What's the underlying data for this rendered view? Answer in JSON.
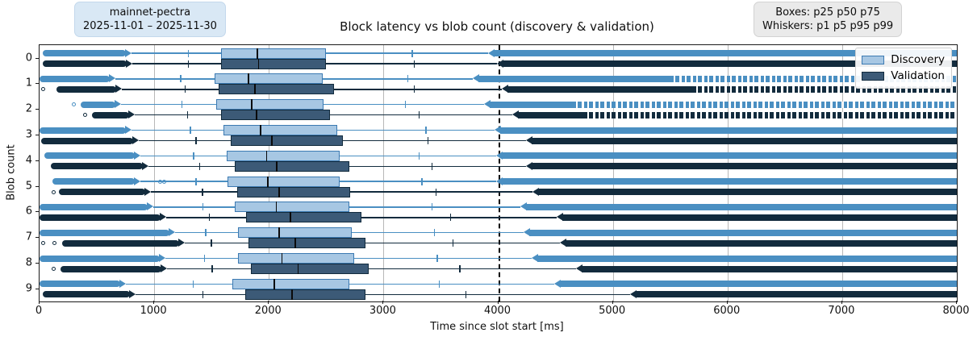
{
  "title": "Block latency vs blob count (discovery & validation)",
  "annotation_left": {
    "line1": "mainnet-pectra",
    "line2": "2025-11-01 – 2025-11-30"
  },
  "annotation_right": {
    "line1": "Boxes: p25 p50 p75",
    "line2": "Whiskers: p1 p5 p95 p99"
  },
  "colors": {
    "discovery_line": "#4a8fc2",
    "discovery_fill": "#a7c7e3",
    "discovery_edge": "#3c7ab2",
    "validation_line": "#122b3d",
    "validation_fill": "#3c5a77",
    "validation_edge": "#122b3d",
    "median": "#0a0a0a",
    "grid": "#b8b8b8",
    "reference": "#000000"
  },
  "chart_data": {
    "type": "boxplot-horizontal-grouped",
    "title": "Block latency vs blob count (discovery & validation)",
    "xlabel": "Time since slot start [ms]",
    "ylabel": "Blob count",
    "xlim": [
      0,
      8000
    ],
    "x_ticks": [
      0,
      1000,
      2000,
      3000,
      4000,
      5000,
      6000,
      7000,
      8000
    ],
    "y_categories": [
      "0",
      "1",
      "2",
      "3",
      "4",
      "5",
      "6",
      "7",
      "8",
      "9"
    ],
    "reference_line_x": 4000,
    "grid": "vertical",
    "legend_position": "upper right",
    "box_stats": "p25 p50 p75",
    "whisker_stats": "p1 p5 p95 p99",
    "outliers_clipped_at": 8000,
    "series": [
      {
        "name": "Discovery",
        "rows": [
          {
            "blob": 0,
            "outlier_min": 30,
            "p1": 800,
            "p5": 1300,
            "p25": 1580,
            "p50": 1900,
            "p75": 2500,
            "p95": 3250,
            "p99": 3910,
            "speckle_from": null,
            "dots": [
              55,
              85
            ]
          },
          {
            "blob": 1,
            "outlier_min": 0,
            "p1": 660,
            "p5": 1230,
            "p25": 1530,
            "p50": 1820,
            "p75": 2470,
            "p95": 3210,
            "p99": 3780,
            "speckle_from": 5500,
            "dots": []
          },
          {
            "blob": 2,
            "outlier_min": 360,
            "p1": 710,
            "p5": 1240,
            "p25": 1540,
            "p50": 1850,
            "p75": 2480,
            "p95": 3190,
            "p99": 3880,
            "speckle_from": 4650,
            "dots": [
              300
            ]
          },
          {
            "blob": 3,
            "outlier_min": 0,
            "p1": 805,
            "p5": 1315,
            "p25": 1605,
            "p50": 1930,
            "p75": 2595,
            "p95": 3370,
            "p99": 3970,
            "speckle_from": null,
            "dots": []
          },
          {
            "blob": 4,
            "outlier_min": 45,
            "p1": 880,
            "p5": 1345,
            "p25": 1630,
            "p50": 1980,
            "p75": 2620,
            "p95": 3310,
            "p99": 3985,
            "speckle_from": null,
            "dots": [
              110,
              145
            ]
          },
          {
            "blob": 5,
            "outlier_min": 115,
            "p1": 880,
            "p5": 1365,
            "p25": 1640,
            "p50": 1990,
            "p75": 2620,
            "p95": 3335,
            "p99": 3980,
            "speckle_from": null,
            "dots": [
              1050,
              1090
            ]
          },
          {
            "blob": 6,
            "outlier_min": 0,
            "p1": 990,
            "p5": 1425,
            "p25": 1700,
            "p50": 2065,
            "p75": 2700,
            "p95": 3425,
            "p99": 4190,
            "speckle_from": null,
            "dots": []
          },
          {
            "blob": 7,
            "outlier_min": 0,
            "p1": 1185,
            "p5": 1450,
            "p25": 1730,
            "p50": 2090,
            "p75": 2720,
            "p95": 3445,
            "p99": 4220,
            "speckle_from": null,
            "dots": [
              140
            ]
          },
          {
            "blob": 8,
            "outlier_min": 0,
            "p1": 1100,
            "p5": 1440,
            "p25": 1730,
            "p50": 2115,
            "p75": 2745,
            "p95": 3470,
            "p99": 4290,
            "speckle_from": null,
            "dots": [
              90,
              135
            ]
          },
          {
            "blob": 9,
            "outlier_min": 0,
            "p1": 750,
            "p5": 1340,
            "p25": 1680,
            "p50": 2045,
            "p75": 2700,
            "p95": 3485,
            "p99": 4490,
            "speckle_from": null,
            "dots": []
          }
        ]
      },
      {
        "name": "Validation",
        "rows": [
          {
            "blob": 0,
            "outlier_min": 30,
            "p1": 810,
            "p5": 1300,
            "p25": 1580,
            "p50": 1910,
            "p75": 2500,
            "p95": 3270,
            "p99": 3990,
            "speckle_from": null,
            "dots": [
              55,
              85
            ]
          },
          {
            "blob": 1,
            "outlier_min": 150,
            "p1": 720,
            "p5": 1270,
            "p25": 1560,
            "p50": 1880,
            "p75": 2570,
            "p95": 3270,
            "p99": 4030,
            "speckle_from": 5700,
            "dots": [
              30
            ]
          },
          {
            "blob": 2,
            "outlier_min": 460,
            "p1": 830,
            "p5": 1290,
            "p25": 1580,
            "p50": 1890,
            "p75": 2530,
            "p95": 3310,
            "p99": 4120,
            "speckle_from": 4750,
            "dots": [
              400
            ]
          },
          {
            "blob": 3,
            "outlier_min": 15,
            "p1": 865,
            "p5": 1365,
            "p25": 1670,
            "p50": 2025,
            "p75": 2645,
            "p95": 3390,
            "p99": 4240,
            "speckle_from": null,
            "dots": [
              60
            ]
          },
          {
            "blob": 4,
            "outlier_min": 100,
            "p1": 950,
            "p5": 1395,
            "p25": 1705,
            "p50": 2070,
            "p75": 2700,
            "p95": 3425,
            "p99": 4240,
            "speckle_from": null,
            "dots": []
          },
          {
            "blob": 5,
            "outlier_min": 170,
            "p1": 970,
            "p5": 1420,
            "p25": 1725,
            "p50": 2090,
            "p75": 2710,
            "p95": 3460,
            "p99": 4300,
            "speckle_from": null,
            "dots": [
              120
            ]
          },
          {
            "blob": 6,
            "outlier_min": 0,
            "p1": 1105,
            "p5": 1480,
            "p25": 1800,
            "p50": 2190,
            "p75": 2805,
            "p95": 3585,
            "p99": 4510,
            "speckle_from": null,
            "dots": [
              950
            ]
          },
          {
            "blob": 7,
            "outlier_min": 200,
            "p1": 1270,
            "p5": 1500,
            "p25": 1825,
            "p50": 2230,
            "p75": 2840,
            "p95": 3605,
            "p99": 4540,
            "speckle_from": null,
            "dots": [
              30,
              130
            ]
          },
          {
            "blob": 8,
            "outlier_min": 185,
            "p1": 1115,
            "p5": 1505,
            "p25": 1840,
            "p50": 2255,
            "p75": 2870,
            "p95": 3665,
            "p99": 4680,
            "speckle_from": null,
            "dots": [
              120
            ]
          },
          {
            "blob": 9,
            "outlier_min": 30,
            "p1": 835,
            "p5": 1425,
            "p25": 1795,
            "p50": 2205,
            "p75": 2845,
            "p95": 3720,
            "p99": 5150,
            "speckle_from": null,
            "dots": [
              90
            ]
          }
        ]
      }
    ]
  }
}
